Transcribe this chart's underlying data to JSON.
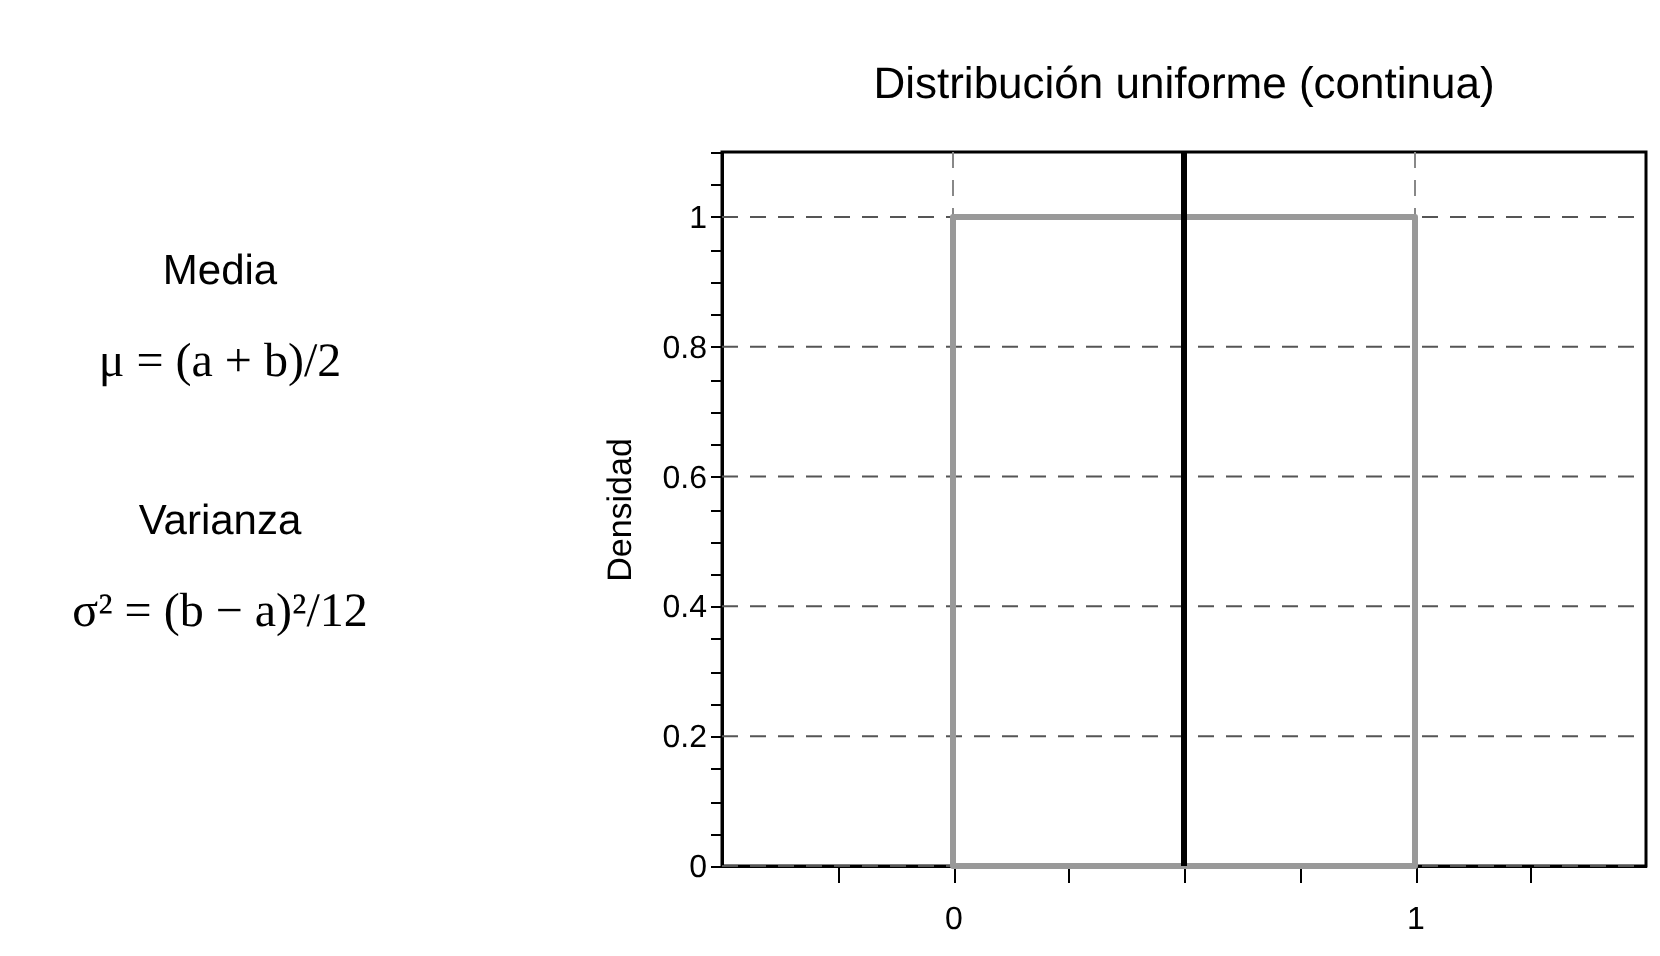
{
  "chart_data": {
    "type": "histogram",
    "title": "Distribución uniforme (continua)",
    "ylabel": "Densidad",
    "annotations": [
      "Media",
      "μ = (a + b)/2",
      "Varianza",
      "σ² = (b − a)²/12"
    ],
    "bins": [
      0,
      1
    ],
    "values": [
      1
    ],
    "color": "#999999",
    "xlim": [
      -0.5,
      1.5
    ],
    "xticks": [
      {
        "value": -0.25,
        "label": null
      },
      0,
      {
        "value": 0.25,
        "label": null
      },
      {
        "value": 0.5,
        "label": null
      },
      {
        "value": 0.75,
        "label": null
      },
      1,
      {
        "value": 1.25,
        "label": null
      }
    ],
    "ylim": [
      0,
      1.1
    ],
    "yticks": [
      0,
      {
        "value": 0.05,
        "label": null
      },
      {
        "value": 0.1,
        "label": null
      },
      {
        "value": 0.15,
        "label": null
      },
      0.2,
      {
        "value": 0.25,
        "label": null
      },
      {
        "value": 0.3,
        "label": null
      },
      {
        "value": 0.35,
        "label": null
      },
      0.4,
      {
        "value": 0.45,
        "label": null
      },
      {
        "value": 0.5,
        "label": null
      },
      {
        "value": 0.55,
        "label": null
      },
      0.6,
      {
        "value": 0.65,
        "label": null
      },
      {
        "value": 0.7,
        "label": null
      },
      {
        "value": 0.75,
        "label": null
      },
      0.8,
      {
        "value": 0.85,
        "label": null
      },
      {
        "value": 0.9,
        "label": null
      },
      {
        "value": 0.95,
        "label": null
      },
      1,
      {
        "value": 1.05,
        "label": null
      },
      {
        "value": 1.1,
        "label": null
      }
    ],
    "ref_lines": [
      {
        "axis": "x",
        "value": 0.5,
        "label": null,
        "color": "#000000"
      }
    ],
    "grid": true,
    "line_style": "solid",
    "legend": false
  }
}
